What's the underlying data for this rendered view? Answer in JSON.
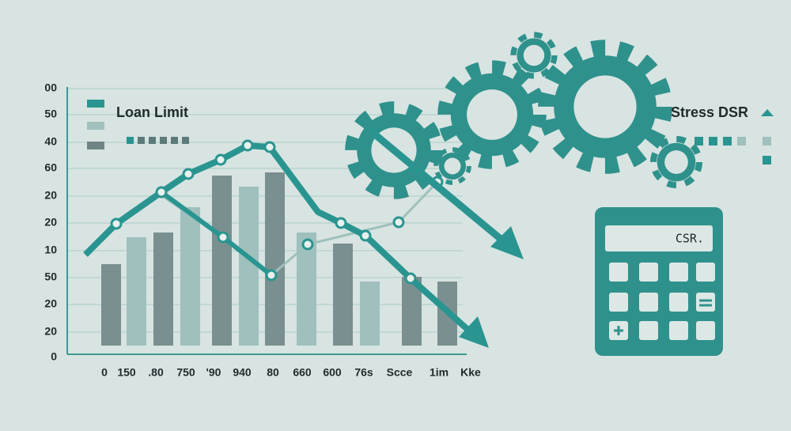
{
  "legend": {
    "left": "Loan Limit",
    "right": "Stress DSR"
  },
  "y_labels": [
    "00",
    "50",
    "40",
    "60",
    "20",
    "20",
    "10",
    "50",
    "20",
    "20",
    "0"
  ],
  "x_labels": [
    "0",
    "150",
    ".80",
    "750",
    "'90",
    "940",
    "80",
    "660",
    "600",
    "76s",
    "Scce",
    "1im",
    "Kke"
  ],
  "calculator": {
    "display": "CSR."
  }
}
